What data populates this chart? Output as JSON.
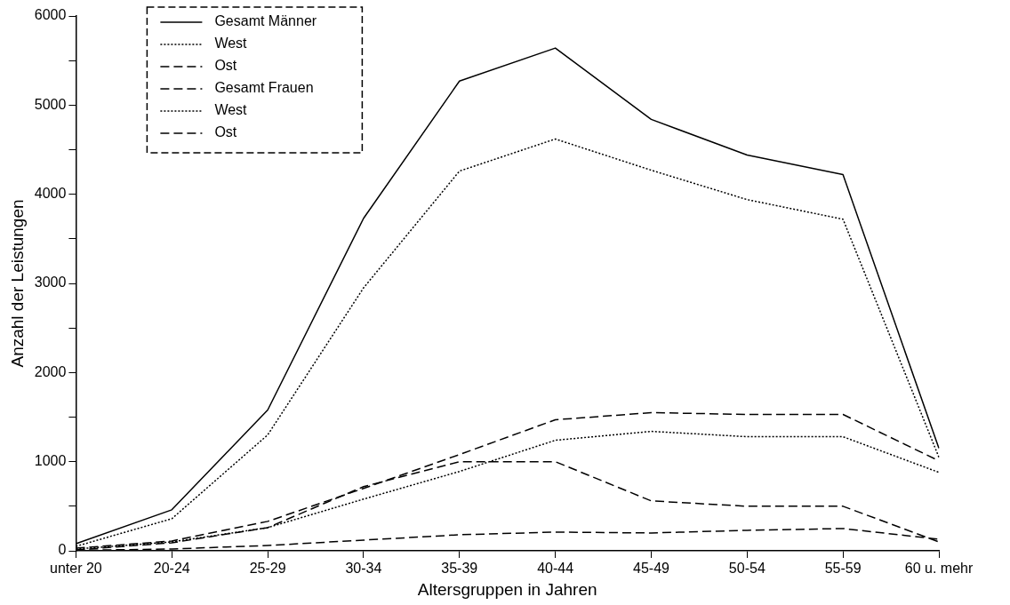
{
  "chart_data": {
    "type": "line",
    "xlabel": "Altersgruppen in Jahren",
    "ylabel": "Anzahl der Leistungen",
    "categories": [
      "unter 20",
      "20-24",
      "25-29",
      "30-34",
      "35-39",
      "40-44",
      "45-49",
      "50-54",
      "55-59",
      "60 u. mehr"
    ],
    "series": [
      {
        "name": "Gesamt Männer",
        "color": "#000000",
        "line_style": "solid",
        "values": [
          80,
          460,
          1580,
          3730,
          5270,
          5640,
          4840,
          4440,
          4220,
          1150
        ]
      },
      {
        "name": "West",
        "color": "#000000",
        "line_style": "dotted",
        "values": [
          50,
          360,
          1300,
          2950,
          4260,
          4620,
          4270,
          3940,
          3720,
          1050
        ]
      },
      {
        "name": "Ost",
        "color": "#000000",
        "line_style": "dashed",
        "values": [
          10,
          90,
          260,
          720,
          1000,
          1000,
          560,
          500,
          500,
          100
        ]
      },
      {
        "name": "Gesamt Frauen",
        "color": "#000000",
        "line_style": "dashed",
        "values": [
          30,
          110,
          330,
          700,
          1080,
          1470,
          1550,
          1530,
          1530,
          1010
        ]
      },
      {
        "name": "West",
        "color": "#000000",
        "line_style": "dotted",
        "values": [
          20,
          100,
          260,
          580,
          890,
          1240,
          1340,
          1280,
          1280,
          880
        ]
      },
      {
        "name": "Ost",
        "color": "#000000",
        "line_style": "dashed",
        "values": [
          5,
          20,
          60,
          120,
          180,
          210,
          200,
          230,
          250,
          130
        ]
      }
    ],
    "ylim": [
      0,
      6000
    ],
    "yticks": [
      0,
      {
        "value": 500,
        "label": null
      },
      1000,
      {
        "value": 1500,
        "label": null
      },
      2000,
      {
        "value": 2500,
        "label": null
      },
      3000,
      {
        "value": 3500,
        "label": null
      },
      4000,
      {
        "value": 4500,
        "label": null
      },
      5000,
      {
        "value": 5500,
        "label": null
      },
      6000
    ],
    "grid": false,
    "legend": "top left",
    "marker": "none"
  }
}
